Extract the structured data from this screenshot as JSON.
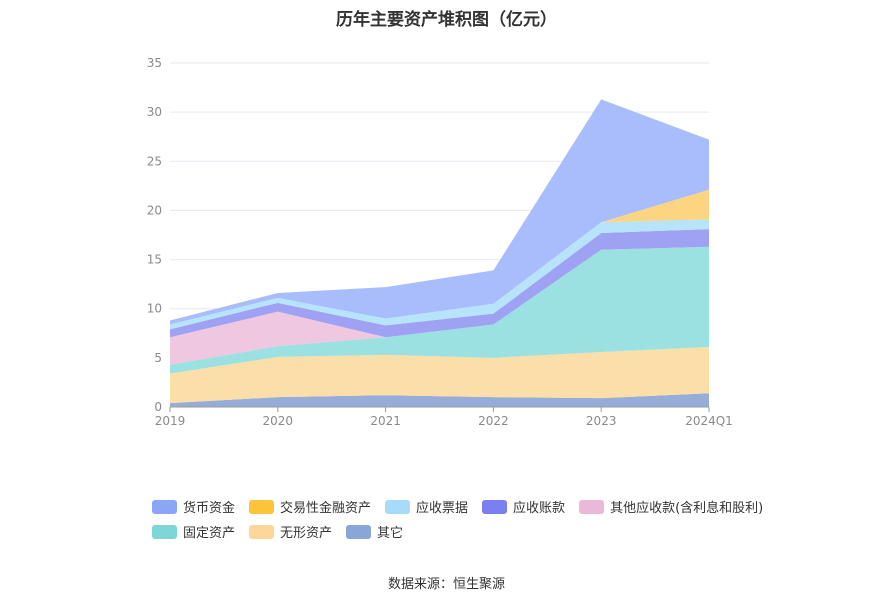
{
  "chart_data": {
    "type": "area",
    "stacked": true,
    "title": "历年主要资产堆积图（亿元）",
    "categories": [
      "2019",
      "2020",
      "2021",
      "2022",
      "2023",
      "2024Q1"
    ],
    "ylim": [
      0,
      35
    ],
    "yticks": [
      0,
      5,
      10,
      15,
      20,
      25,
      30,
      35
    ],
    "grid": true,
    "legend_position": "bottom",
    "series": [
      {
        "name": "其它",
        "color": "#8fa9d6",
        "values": [
          0.4,
          1.0,
          1.2,
          1.0,
          0.9,
          1.4
        ]
      },
      {
        "name": "无形资产",
        "color": "#fcdca4",
        "values": [
          3.0,
          4.1,
          4.1,
          4.0,
          4.7,
          4.7
        ]
      },
      {
        "name": "固定资产",
        "color": "#97dfdf",
        "values": [
          0.9,
          1.1,
          1.8,
          3.4,
          10.4,
          10.2
        ]
      },
      {
        "name": "其他应收款(含利息和股利)",
        "color": "#eec4de",
        "values": [
          2.8,
          3.5,
          0.0,
          0.0,
          0.0,
          0.0
        ]
      },
      {
        "name": "应收账款",
        "color": "#9a9cf2",
        "values": [
          0.8,
          0.9,
          1.2,
          1.1,
          1.7,
          1.8
        ]
      },
      {
        "name": "应收票据",
        "color": "#b3e3fb",
        "values": [
          0.5,
          0.5,
          0.7,
          1.0,
          1.1,
          1.0
        ]
      },
      {
        "name": "交易性金融资产",
        "color": "#fdd37a",
        "values": [
          0.0,
          0.0,
          0.0,
          0.0,
          0.0,
          3.0
        ]
      },
      {
        "name": "货币资金",
        "color": "#a4b8fc",
        "values": [
          0.4,
          0.5,
          3.2,
          3.4,
          12.5,
          5.1
        ]
      }
    ]
  },
  "legend": {
    "row1": [
      {
        "name": "货币资金",
        "color": "#8ca6f7"
      },
      {
        "name": "交易性金融资产",
        "color": "#fbc43a"
      },
      {
        "name": "应收票据",
        "color": "#a7dcf8"
      },
      {
        "name": "应收账款",
        "color": "#7c7ff0"
      },
      {
        "name": "其他应收款(含利息和股利)",
        "color": "#eab9d8"
      }
    ],
    "row2": [
      {
        "name": "固定资产",
        "color": "#7fd6d6"
      },
      {
        "name": "无形资产",
        "color": "#fbd79a"
      },
      {
        "name": "其它",
        "color": "#8aa5d8"
      }
    ]
  },
  "source": "数据来源：恒生聚源"
}
